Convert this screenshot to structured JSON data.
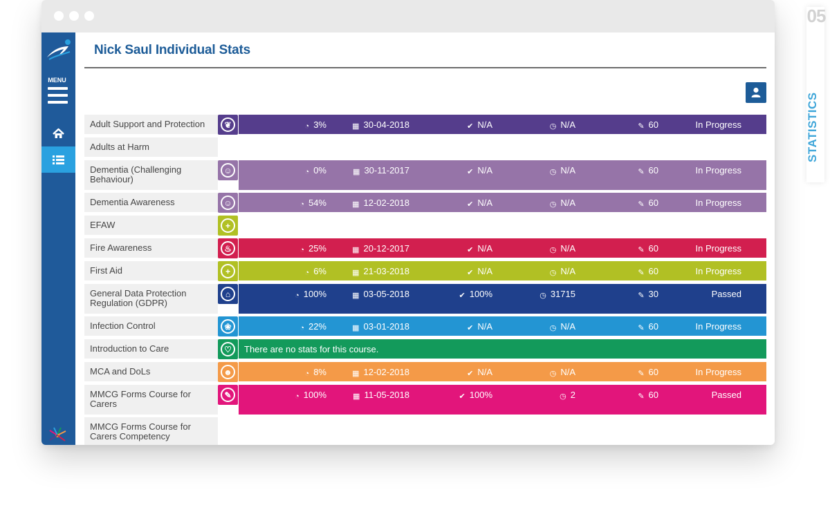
{
  "page_title": "Nick Saul Individual Stats",
  "sidebar": {
    "menu_label": "MENU"
  },
  "side_tab": {
    "number": "05",
    "label": "STATISTICS"
  },
  "no_stats_text": "There are no stats for this course.",
  "courses": [
    {
      "name": "Adult Support and Protection",
      "icon": "leaf-shield-icon",
      "color": "#553d8c",
      "bar": true,
      "pct": "3%",
      "date": "30-04-2018",
      "score": "N/A",
      "time": "N/A",
      "edit": "60",
      "status": "In Progress"
    },
    {
      "name": "Adults at Harm",
      "icon": "",
      "color": "",
      "bar": false
    },
    {
      "name": "Dementia (Challenging Behaviour)",
      "icon": "head-icon",
      "color": "#9674a8",
      "bar": true,
      "pct": "0%",
      "date": "30-11-2017",
      "score": "N/A",
      "time": "N/A",
      "edit": "60",
      "status": "In Progress"
    },
    {
      "name": "Dementia Awareness",
      "icon": "head-icon",
      "color": "#9674a8",
      "bar": true,
      "pct": "54%",
      "date": "12-02-2018",
      "score": "N/A",
      "time": "N/A",
      "edit": "60",
      "status": "In Progress"
    },
    {
      "name": "EFAW",
      "icon": "plus-icon",
      "color": "#b1c024",
      "bar": false
    },
    {
      "name": "Fire Awareness",
      "icon": "flame-icon",
      "color": "#d21f4f",
      "bar": true,
      "pct": "25%",
      "date": "20-12-2017",
      "score": "N/A",
      "time": "N/A",
      "edit": "60",
      "status": "In Progress"
    },
    {
      "name": "First Aid",
      "icon": "plus-icon",
      "color": "#b1c024",
      "bar": true,
      "pct": "6%",
      "date": "21-03-2018",
      "score": "N/A",
      "time": "N/A",
      "edit": "60",
      "status": "In Progress"
    },
    {
      "name": "General Data Protection Regulation (GDPR)",
      "icon": "lock-icon",
      "color": "#1f408c",
      "bar": true,
      "pct": "100%",
      "date": "03-05-2018",
      "score": "100%",
      "time": "31715",
      "edit": "30",
      "status": "Passed"
    },
    {
      "name": "Infection Control",
      "icon": "drop-icon",
      "color": "#2395d3",
      "bar": true,
      "pct": "22%",
      "date": "03-01-2018",
      "score": "N/A",
      "time": "N/A",
      "edit": "60",
      "status": "In Progress"
    },
    {
      "name": "Introduction to Care",
      "icon": "heart-hand-icon",
      "color": "#139a5b",
      "bar": "empty"
    },
    {
      "name": "MCA and DoLs",
      "icon": "person-icon",
      "color": "#f49a48",
      "bar": true,
      "pct": "8%",
      "date": "12-02-2018",
      "score": "N/A",
      "time": "N/A",
      "edit": "60",
      "status": "In Progress"
    },
    {
      "name": "MMCG Forms Course for Carers",
      "icon": "pen-icon",
      "color": "#e2157b",
      "bar": true,
      "pct": "100%",
      "date": "11-05-2018",
      "score": "100%",
      "time": "2",
      "edit": "60",
      "status": "Passed"
    },
    {
      "name": "MMCG Forms Course for Carers Competency",
      "icon": "",
      "color": "",
      "bar": false
    }
  ]
}
